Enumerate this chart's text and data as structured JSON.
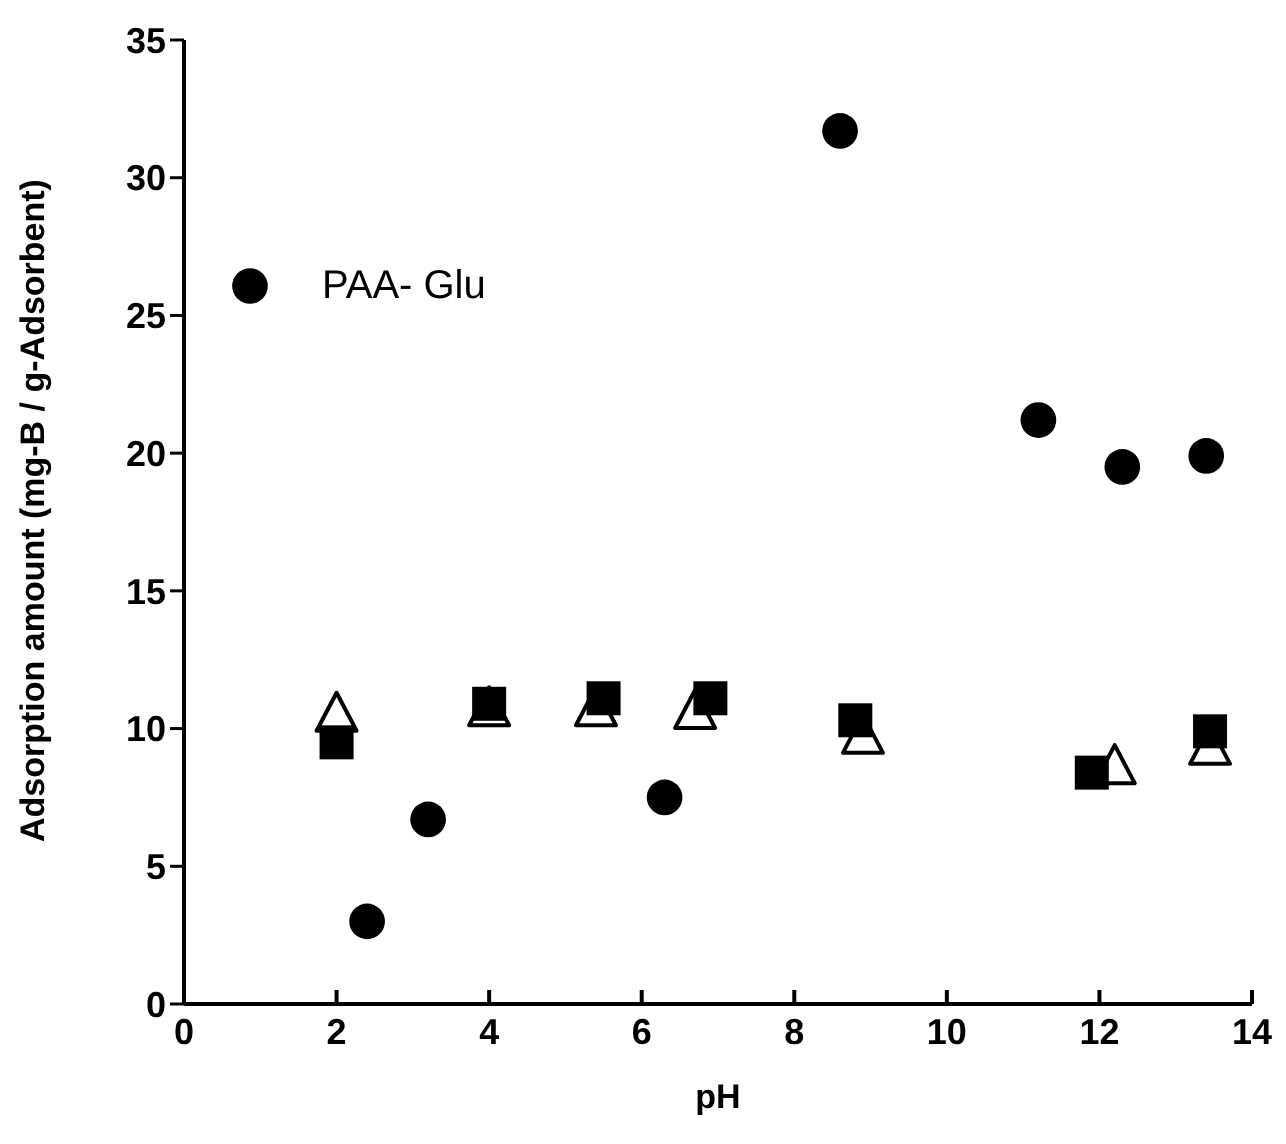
{
  "chart_data": {
    "type": "scatter",
    "xlabel": "pH",
    "ylabel": "Adsorption amount (mg-B / g-Adsorbent)",
    "xlim": [
      0,
      14
    ],
    "xticks": [
      0,
      2,
      4,
      6,
      8,
      10,
      12,
      14
    ],
    "ylim": [
      0,
      35
    ],
    "yticks": [
      0,
      5,
      10,
      15,
      20,
      25,
      30,
      35
    ],
    "grid": false,
    "legend": "top left",
    "series": [
      {
        "color": "#000000",
        "marker": "square",
        "x": [
          2.0,
          4.0,
          5.5,
          6.9,
          8.8,
          11.9,
          13.45
        ],
        "values": [
          9.5,
          10.9,
          11.1,
          11.1,
          10.3,
          8.4,
          9.9
        ]
      },
      {
        "color": "#000000",
        "marker": "triangle",
        "x": [
          2.0,
          4.0,
          5.4,
          6.7,
          8.9,
          12.2,
          13.45
        ],
        "values": [
          10.5,
          10.7,
          10.7,
          10.6,
          9.7,
          8.6,
          9.3
        ]
      },
      {
        "name": "PAA- Glu",
        "color": "#000000",
        "marker": "circle",
        "x": [
          2.4,
          3.2,
          6.3,
          8.6,
          11.2,
          12.3,
          13.4
        ],
        "values": [
          3.0,
          6.7,
          7.5,
          31.7,
          21.2,
          19.5,
          19.9
        ]
      }
    ]
  }
}
